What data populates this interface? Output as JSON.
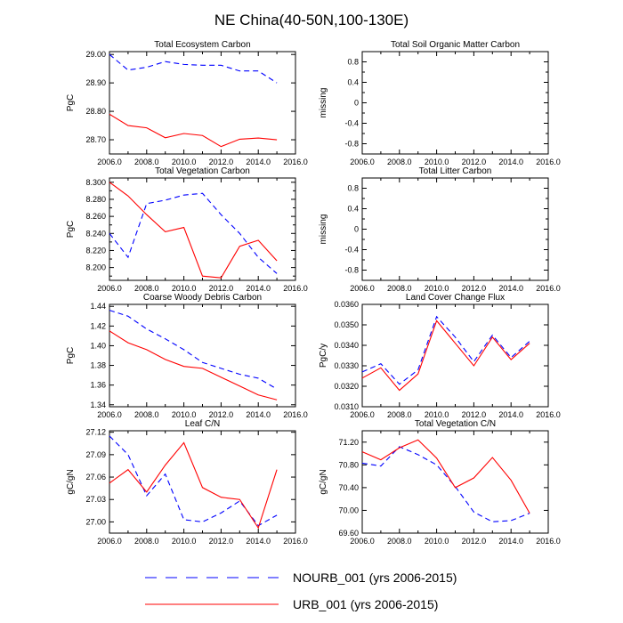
{
  "figure_title": "NE China(40-50N,100-130E)",
  "series_styles": {
    "NOURB_001": {
      "color": "#0000ff",
      "dash": "6,4"
    },
    "URB_001": {
      "color": "#ff0000",
      "dash": ""
    }
  },
  "legend": [
    {
      "series": "NOURB_001",
      "label": "NOURB_001 (yrs 2006-2015)"
    },
    {
      "series": "URB_001",
      "label": "URB_001 (yrs 2006-2015)"
    }
  ],
  "chart_data": [
    {
      "type": "line",
      "title": "Total Ecosystem Carbon",
      "ylabel": "PgC",
      "xlim": [
        2006,
        2016
      ],
      "xticks": [
        2006,
        2008,
        2010,
        2012,
        2014,
        2016
      ],
      "xtick_labels": [
        "2006.0",
        "2008.0",
        "2010.0",
        "2012.0",
        "2014.0",
        "2016.0"
      ],
      "ylim": [
        28.65,
        29.01
      ],
      "yticks": [
        28.7,
        28.8,
        28.9,
        29.0
      ],
      "ytick_labels": [
        "28.70",
        "28.80",
        "28.90",
        "29.00"
      ],
      "x": [
        2006,
        2007,
        2008,
        2009,
        2010,
        2011,
        2012,
        2013,
        2014,
        2015
      ],
      "series": [
        {
          "name": "NOURB_001",
          "values": [
            29.0,
            28.945,
            28.955,
            28.975,
            28.965,
            28.962,
            28.962,
            28.942,
            28.942,
            28.9
          ]
        },
        {
          "name": "URB_001",
          "values": [
            28.79,
            28.75,
            28.742,
            28.707,
            28.722,
            28.715,
            28.676,
            28.702,
            28.706,
            28.7
          ]
        }
      ]
    },
    {
      "type": "line",
      "title": "Total Soil Organic Matter Carbon",
      "ylabel": "missing",
      "xlim": [
        2006,
        2016
      ],
      "xticks": [
        2006,
        2008,
        2010,
        2012,
        2014,
        2016
      ],
      "xtick_labels": [
        "2006.0",
        "2008.0",
        "2010.0",
        "2012.0",
        "2014.0",
        "2016.0"
      ],
      "ylim": [
        -1.0,
        1.0
      ],
      "yticks": [
        -0.8,
        -0.4,
        0.0,
        0.4,
        0.8
      ],
      "ytick_labels": [
        "-0.8",
        "-0.4",
        "0",
        "0.4",
        "0.8"
      ],
      "minor_yticks": [
        -0.6,
        -0.2,
        0.2,
        0.6
      ],
      "x": [],
      "series": []
    },
    {
      "type": "line",
      "title": "Total Vegetation Carbon",
      "ylabel": "PgC",
      "xlim": [
        2006,
        2016
      ],
      "xticks": [
        2006,
        2008,
        2010,
        2012,
        2014,
        2016
      ],
      "xtick_labels": [
        "2006.0",
        "2008.0",
        "2010.0",
        "2012.0",
        "2014.0",
        "2016.0"
      ],
      "ylim": [
        8.185,
        8.305
      ],
      "yticks": [
        8.19,
        8.2,
        8.21,
        8.22,
        8.23,
        8.24,
        8.25,
        8.26,
        8.27,
        8.28,
        8.29,
        8.3
      ],
      "ytick_labels": [
        "",
        "8.200",
        "",
        "8.220",
        "",
        "8.240",
        "",
        "8.260",
        "",
        "8.280",
        "",
        "8.300"
      ],
      "x": [
        2006,
        2007,
        2008,
        2009,
        2010,
        2011,
        2012,
        2013,
        2014,
        2015
      ],
      "series": [
        {
          "name": "NOURB_001",
          "values": [
            8.24,
            8.212,
            8.275,
            8.279,
            8.285,
            8.287,
            8.262,
            8.24,
            8.212,
            8.193
          ]
        },
        {
          "name": "URB_001",
          "values": [
            8.3,
            8.284,
            8.262,
            8.242,
            8.247,
            8.19,
            8.188,
            8.225,
            8.232,
            8.208
          ]
        }
      ]
    },
    {
      "type": "line",
      "title": "Total Litter Carbon",
      "ylabel": "missing",
      "xlim": [
        2006,
        2016
      ],
      "xticks": [
        2006,
        2008,
        2010,
        2012,
        2014,
        2016
      ],
      "xtick_labels": [
        "2006.0",
        "2008.0",
        "2010.0",
        "2012.0",
        "2014.0",
        "2016.0"
      ],
      "ylim": [
        -1.0,
        1.0
      ],
      "yticks": [
        -0.8,
        -0.4,
        0.0,
        0.4,
        0.8
      ],
      "ytick_labels": [
        "-0.8",
        "-0.4",
        "0",
        "0.4",
        "0.8"
      ],
      "minor_yticks": [
        -0.6,
        -0.2,
        0.2,
        0.6
      ],
      "x": [],
      "series": []
    },
    {
      "type": "line",
      "title": "Coarse Woody Debris Carbon",
      "ylabel": "PgC",
      "xlim": [
        2006,
        2016
      ],
      "xticks": [
        2006,
        2008,
        2010,
        2012,
        2014,
        2016
      ],
      "xtick_labels": [
        "2006.0",
        "2008.0",
        "2010.0",
        "2012.0",
        "2014.0",
        "2016.0"
      ],
      "ylim": [
        1.338,
        1.442
      ],
      "yticks": [
        1.34,
        1.36,
        1.38,
        1.4,
        1.42,
        1.44
      ],
      "ytick_labels": [
        "1.34",
        "1.36",
        "1.38",
        "1.40",
        "1.42",
        "1.44"
      ],
      "x": [
        2006,
        2007,
        2008,
        2009,
        2010,
        2011,
        2012,
        2013,
        2014,
        2015
      ],
      "series": [
        {
          "name": "NOURB_001",
          "values": [
            1.436,
            1.43,
            1.417,
            1.407,
            1.396,
            1.383,
            1.377,
            1.371,
            1.367,
            1.356
          ]
        },
        {
          "name": "URB_001",
          "values": [
            1.415,
            1.403,
            1.396,
            1.386,
            1.379,
            1.377,
            1.368,
            1.359,
            1.35,
            1.345
          ]
        }
      ]
    },
    {
      "type": "line",
      "title": "Land Cover Change Flux",
      "ylabel": "PgC/y",
      "xlim": [
        2006,
        2016
      ],
      "xticks": [
        2006,
        2008,
        2010,
        2012,
        2014,
        2016
      ],
      "xtick_labels": [
        "2006.0",
        "2008.0",
        "2010.0",
        "2012.0",
        "2014.0",
        "2016.0"
      ],
      "ylim": [
        0.031,
        0.036
      ],
      "yticks": [
        0.031,
        0.032,
        0.033,
        0.034,
        0.035,
        0.036
      ],
      "ytick_labels": [
        "0.0310",
        "0.0320",
        "0.0330",
        "0.0340",
        "0.0350",
        "0.0360"
      ],
      "x": [
        2006,
        2007,
        2008,
        2009,
        2010,
        2011,
        2012,
        2013,
        2014,
        2015
      ],
      "series": [
        {
          "name": "NOURB_001",
          "values": [
            0.0327,
            0.0331,
            0.0321,
            0.0328,
            0.0354,
            0.0344,
            0.0332,
            0.0345,
            0.0334,
            0.0342
          ]
        },
        {
          "name": "URB_001",
          "values": [
            0.0324,
            0.0329,
            0.0318,
            0.0326,
            0.0352,
            0.0341,
            0.033,
            0.0344,
            0.0333,
            0.0341
          ]
        }
      ]
    },
    {
      "type": "line",
      "title": "Leaf C/N",
      "ylabel": "gC/gN",
      "xlim": [
        2006,
        2016
      ],
      "xticks": [
        2006,
        2008,
        2010,
        2012,
        2014,
        2016
      ],
      "xtick_labels": [
        "2006.0",
        "2008.0",
        "2010.0",
        "2012.0",
        "2014.0",
        "2016.0"
      ],
      "ylim": [
        26.985,
        27.122
      ],
      "yticks": [
        27.0,
        27.03,
        27.06,
        27.09,
        27.12
      ],
      "ytick_labels": [
        "27.00",
        "27.03",
        "27.06",
        "27.09",
        "27.12"
      ],
      "x": [
        2006,
        2007,
        2008,
        2009,
        2010,
        2011,
        2012,
        2013,
        2014,
        2015
      ],
      "series": [
        {
          "name": "NOURB_001",
          "values": [
            27.115,
            27.09,
            27.035,
            27.064,
            27.003,
            27.0,
            27.012,
            27.028,
            26.995,
            27.009
          ]
        },
        {
          "name": "URB_001",
          "values": [
            27.052,
            27.07,
            27.04,
            27.076,
            27.106,
            27.046,
            27.033,
            27.03,
            26.992,
            27.07
          ]
        }
      ]
    },
    {
      "type": "line",
      "title": "Total Vegetation C/N",
      "ylabel": "gC/gN",
      "xlim": [
        2006,
        2016
      ],
      "xticks": [
        2006,
        2008,
        2010,
        2012,
        2014,
        2016
      ],
      "xtick_labels": [
        "2006.0",
        "2008.0",
        "2010.0",
        "2012.0",
        "2014.0",
        "2016.0"
      ],
      "ylim": [
        69.6,
        71.4
      ],
      "yticks": [
        69.6,
        70.0,
        70.4,
        70.8,
        71.2
      ],
      "ytick_labels": [
        "69.60",
        "70.00",
        "70.40",
        "70.80",
        "71.20"
      ],
      "x": [
        2006,
        2007,
        2008,
        2009,
        2010,
        2011,
        2012,
        2013,
        2014,
        2015
      ],
      "series": [
        {
          "name": "NOURB_001",
          "values": [
            70.83,
            70.78,
            71.12,
            70.98,
            70.8,
            70.42,
            69.97,
            69.8,
            69.82,
            69.95
          ]
        },
        {
          "name": "URB_001",
          "values": [
            71.03,
            70.89,
            71.1,
            71.24,
            70.92,
            70.4,
            70.57,
            70.93,
            70.53,
            69.95
          ]
        }
      ]
    }
  ]
}
